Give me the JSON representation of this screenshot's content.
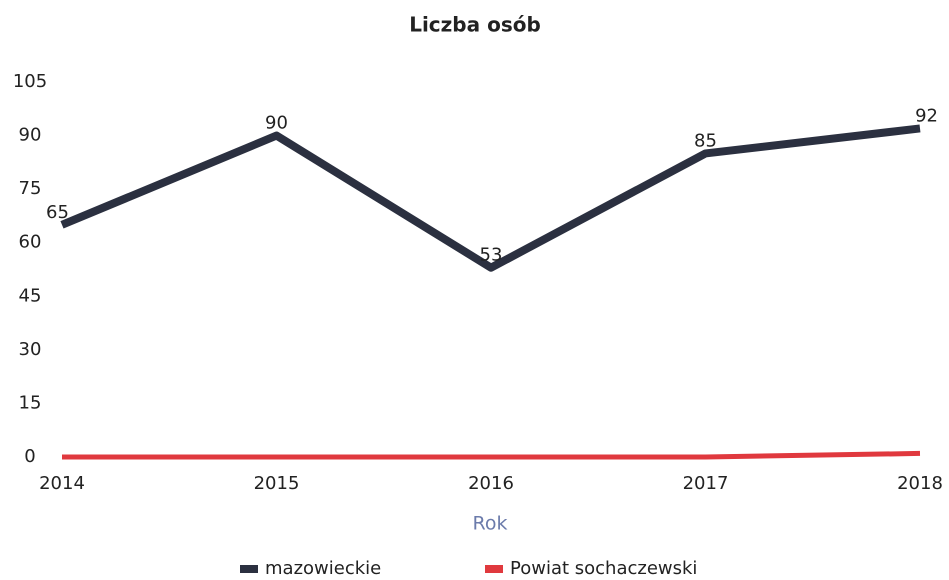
{
  "chart_data": {
    "type": "line",
    "title": "Liczba osób",
    "x_label": "Rok",
    "categories": [
      "2014",
      "2015",
      "2016",
      "2017",
      "2018"
    ],
    "series": [
      {
        "name": "mazowieckie",
        "color": "#2b3040",
        "values": [
          65,
          90,
          53,
          85,
          92
        ],
        "show_labels": true
      },
      {
        "name": "Powiat sochaczewski",
        "color": "#e0393e",
        "values": [
          0,
          0,
          0,
          0,
          1
        ],
        "show_labels": false
      }
    ],
    "ylim": [
      0,
      105
    ],
    "yticks": [
      0,
      15,
      30,
      45,
      60,
      75,
      90,
      105
    ],
    "grid": false
  }
}
